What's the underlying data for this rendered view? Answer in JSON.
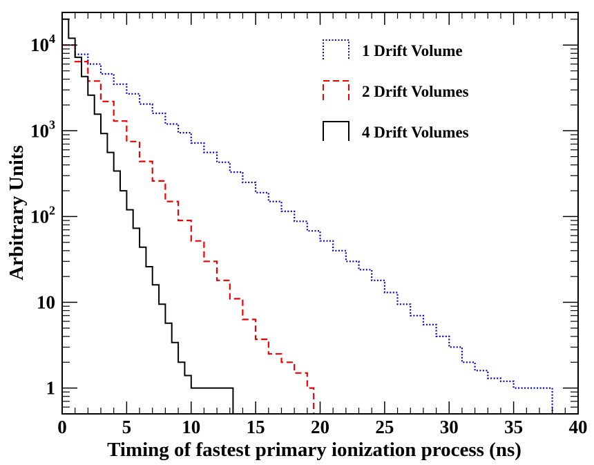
{
  "chart_data": {
    "type": "line",
    "title": "",
    "xlabel": "Timing of fastest primary ionization process (ns)",
    "ylabel": "Arbitrary Units",
    "xlim": [
      0,
      40
    ],
    "ylim": [
      0.5,
      24000
    ],
    "yscale": "log",
    "x_ticks": [
      {
        "value": 0,
        "label": "0"
      },
      {
        "value": 5,
        "label": "5"
      },
      {
        "value": 10,
        "label": "10"
      },
      {
        "value": 15,
        "label": "15"
      },
      {
        "value": 20,
        "label": "20"
      },
      {
        "value": 25,
        "label": "25"
      },
      {
        "value": 30,
        "label": "30"
      },
      {
        "value": 35,
        "label": "35"
      },
      {
        "value": 40,
        "label": "40"
      }
    ],
    "y_ticks": [
      {
        "value": 1,
        "base": "1",
        "exp": ""
      },
      {
        "value": 10,
        "base": "10",
        "exp": ""
      },
      {
        "value": 100,
        "base": "10",
        "exp": "2"
      },
      {
        "value": 1000,
        "base": "10",
        "exp": "3"
      },
      {
        "value": 10000,
        "base": "10",
        "exp": "4"
      }
    ],
    "grid": false,
    "legend_position": "top-right",
    "series": [
      {
        "name": "1 Drift Volume",
        "color": "#0000cc",
        "style": "dotted",
        "x": [
          0,
          1,
          2,
          3,
          4,
          5,
          6,
          7,
          8,
          9,
          10,
          11,
          12,
          13,
          14,
          15,
          16,
          17,
          18,
          19,
          20,
          21,
          22,
          23,
          24,
          25,
          26,
          27,
          28,
          29,
          30,
          31,
          32,
          33,
          34,
          35,
          36,
          37,
          37.5
        ],
        "y": [
          10000,
          7800,
          6000,
          4600,
          3500,
          2700,
          2050,
          1600,
          1200,
          950,
          720,
          560,
          430,
          330,
          250,
          190,
          150,
          115,
          88,
          68,
          52,
          40,
          30,
          24,
          18,
          13,
          9.5,
          7,
          5.5,
          4,
          3,
          2,
          1.6,
          1.3,
          1.2,
          1,
          1,
          1,
          1
        ]
      },
      {
        "name": "2 Drift Volumes",
        "color": "#ee0000",
        "style": "dashed",
        "x": [
          0,
          1,
          2,
          3,
          4,
          5,
          6,
          7,
          8,
          9,
          10,
          11,
          12,
          13,
          14,
          15,
          16,
          17,
          18,
          19
        ],
        "y": [
          10000,
          6400,
          3800,
          2200,
          1300,
          750,
          440,
          260,
          150,
          90,
          52,
          30,
          18,
          11,
          6.3,
          3.7,
          2.5,
          2,
          1.5,
          1
        ]
      },
      {
        "name": "4 Drift Volumes",
        "color": "#000000",
        "style": "solid",
        "x": [
          0,
          0.5,
          1,
          1.5,
          2,
          2.5,
          3,
          3.5,
          4,
          4.5,
          5,
          5.5,
          6,
          6.5,
          7,
          7.5,
          8,
          8.5,
          9,
          9.5,
          10,
          11,
          12,
          13
        ],
        "y": [
          20000,
          12000,
          7200,
          4300,
          2600,
          1560,
          930,
          560,
          340,
          200,
          120,
          73,
          44,
          26,
          16,
          9.5,
          5.7,
          3.4,
          2,
          1.4,
          1,
          1,
          1,
          1
        ]
      }
    ]
  }
}
